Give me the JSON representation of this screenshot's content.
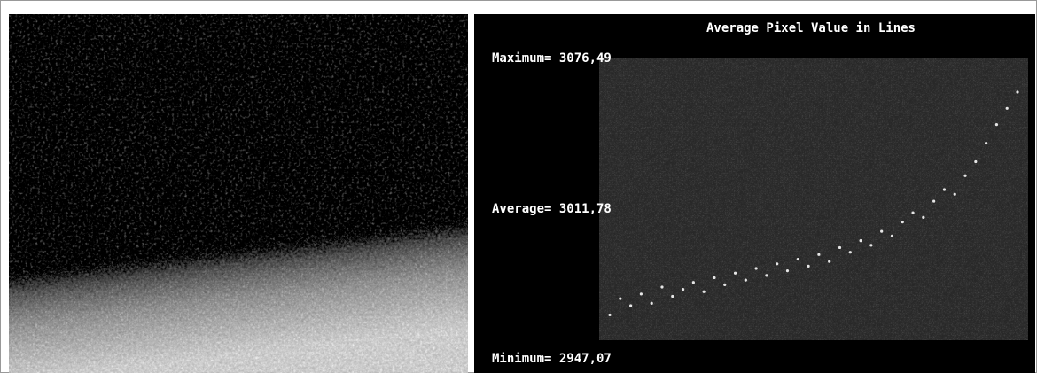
{
  "chart_data": {
    "type": "scatter",
    "title": "Average Pixel Value in Lines",
    "annotations": [
      "Maximum= 3076,49",
      "Average= 3011,78",
      "Minimum= 2947,07"
    ],
    "x": [
      0,
      1,
      2,
      3,
      4,
      5,
      6,
      7,
      8,
      9,
      10,
      11,
      12,
      13,
      14,
      15,
      16,
      17,
      18,
      19,
      20,
      21,
      22,
      23,
      24,
      25,
      26,
      27,
      28,
      29,
      30,
      31,
      32,
      33,
      34,
      35,
      36,
      37,
      38,
      39
    ],
    "values": [
      2966,
      2973,
      2970,
      2975,
      2971,
      2978,
      2974,
      2977,
      2980,
      2976,
      2982,
      2979,
      2984,
      2981,
      2986,
      2983,
      2988,
      2985,
      2990,
      2987,
      2992,
      2989,
      2995,
      2993,
      2998,
      2996,
      3002,
      3000,
      3006,
      3010,
      3008,
      3015,
      3020,
      3018,
      3026,
      3032,
      3040,
      3048,
      3055,
      3062
    ],
    "ylim": [
      2947.07,
      3076.49
    ],
    "color": "#e6e6e6"
  }
}
